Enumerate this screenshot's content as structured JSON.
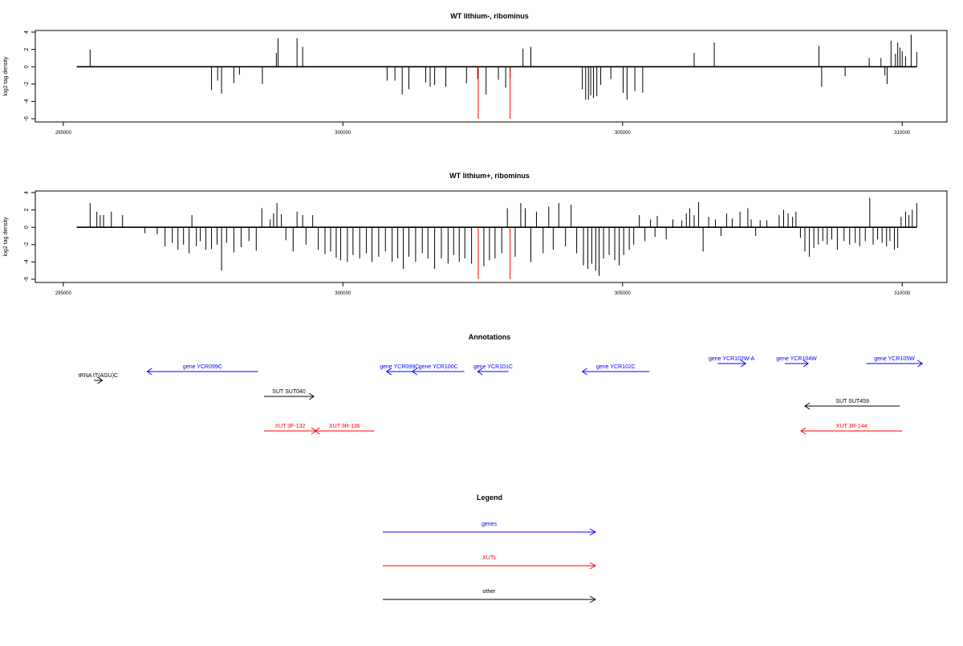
{
  "chart_data": [
    {
      "type": "bar",
      "title": "WT lithium-, ribominus",
      "xlabel": "",
      "ylabel": "log2 tag density",
      "xlim": [
        294500,
        310800
      ],
      "ylim": [
        -6,
        4
      ],
      "xticks": [
        295000,
        300000,
        305000,
        310000
      ],
      "yticks": [
        -6,
        -4,
        -2,
        0,
        2,
        4
      ],
      "grid": false,
      "series": [
        {
          "color": "#000000",
          "points": [
            [
              295480,
              2.0
            ],
            [
              297650,
              -2.7
            ],
            [
              297760,
              -1.6
            ],
            [
              297830,
              -3.1
            ],
            [
              298050,
              -1.9
            ],
            [
              298150,
              -0.9
            ],
            [
              298560,
              -2.0
            ],
            [
              298810,
              1.6
            ],
            [
              298840,
              3.3
            ],
            [
              299180,
              3.3
            ],
            [
              299280,
              2.3
            ],
            [
              300790,
              -1.6
            ],
            [
              300930,
              -1.6
            ],
            [
              301060,
              -3.2
            ],
            [
              301180,
              -2.6
            ],
            [
              301480,
              -1.8
            ],
            [
              301560,
              -2.3
            ],
            [
              301640,
              -2.1
            ],
            [
              301840,
              -2.3
            ],
            [
              302210,
              -1.9
            ],
            [
              302410,
              -1.4
            ],
            [
              302560,
              -3.2
            ],
            [
              302780,
              -1.5
            ],
            [
              302910,
              -2.4
            ],
            [
              302990,
              -1.4
            ],
            [
              303220,
              2.1
            ],
            [
              303360,
              2.3
            ],
            [
              304280,
              -2.6
            ],
            [
              304340,
              -3.8
            ],
            [
              304390,
              -3.8
            ],
            [
              304430,
              -3.3
            ],
            [
              304480,
              -3.6
            ],
            [
              304540,
              -3.4
            ],
            [
              304610,
              -2.1
            ],
            [
              304790,
              -1.4
            ],
            [
              305010,
              -3.0
            ],
            [
              305080,
              -3.8
            ],
            [
              305220,
              -2.8
            ],
            [
              305360,
              -3.0
            ],
            [
              306280,
              1.6
            ],
            [
              306640,
              2.8
            ],
            [
              308510,
              2.4
            ],
            [
              308560,
              -2.3
            ],
            [
              308980,
              -1.1
            ],
            [
              309410,
              1.0
            ],
            [
              309620,
              1.0
            ],
            [
              309690,
              -1.0
            ],
            [
              309730,
              -2.0
            ],
            [
              309800,
              3.0
            ],
            [
              309880,
              1.5
            ],
            [
              309920,
              2.8
            ],
            [
              309960,
              2.2
            ],
            [
              310000,
              1.8
            ],
            [
              310060,
              1.2
            ],
            [
              310160,
              3.7
            ],
            [
              310260,
              1.7
            ]
          ]
        },
        {
          "color": "#ff0000",
          "points": [
            [
              302420,
              -6.0
            ],
            [
              302990,
              -6.0
            ]
          ]
        }
      ]
    },
    {
      "type": "bar",
      "title": "WT lithium+, ribominus",
      "xlabel": "",
      "ylabel": "log2 tag density",
      "xlim": [
        294500,
        310800
      ],
      "ylim": [
        -6,
        4
      ],
      "xticks": [
        295000,
        300000,
        305000,
        310000
      ],
      "yticks": [
        -6,
        -4,
        -2,
        0,
        2,
        4
      ],
      "grid": false,
      "series": [
        {
          "color": "#000000",
          "points": [
            [
              295480,
              2.8
            ],
            [
              295600,
              1.8
            ],
            [
              295660,
              1.4
            ],
            [
              295720,
              1.4
            ],
            [
              295860,
              1.8
            ],
            [
              296060,
              1.4
            ],
            [
              296460,
              -0.7
            ],
            [
              296680,
              -0.8
            ],
            [
              296820,
              -2.2
            ],
            [
              296950,
              -1.8
            ],
            [
              297050,
              -2.6
            ],
            [
              297150,
              -2.0
            ],
            [
              297250,
              -3.0
            ],
            [
              297300,
              1.4
            ],
            [
              297380,
              -2.2
            ],
            [
              297450,
              -1.6
            ],
            [
              297550,
              -2.6
            ],
            [
              297650,
              -2.5
            ],
            [
              297750,
              -2.0
            ],
            [
              297830,
              -5.0
            ],
            [
              297920,
              -1.8
            ],
            [
              298050,
              -2.9
            ],
            [
              298180,
              -2.3
            ],
            [
              298320,
              -1.6
            ],
            [
              298450,
              -2.7
            ],
            [
              298550,
              2.2
            ],
            [
              298700,
              0.9
            ],
            [
              298760,
              1.6
            ],
            [
              298820,
              2.8
            ],
            [
              298900,
              1.5
            ],
            [
              298980,
              -1.5
            ],
            [
              299110,
              -2.8
            ],
            [
              299180,
              1.8
            ],
            [
              299280,
              1.4
            ],
            [
              299340,
              -2.0
            ],
            [
              299460,
              1.4
            ],
            [
              299560,
              -2.6
            ],
            [
              299680,
              -3.1
            ],
            [
              299780,
              -2.8
            ],
            [
              299880,
              -3.5
            ],
            [
              299960,
              -3.8
            ],
            [
              300080,
              -4.0
            ],
            [
              300180,
              -3.2
            ],
            [
              300300,
              -3.6
            ],
            [
              300420,
              -3.0
            ],
            [
              300520,
              -4.0
            ],
            [
              300640,
              -3.4
            ],
            [
              300760,
              -2.8
            ],
            [
              300880,
              -4.0
            ],
            [
              300980,
              -3.6
            ],
            [
              301080,
              -4.8
            ],
            [
              301180,
              -3.4
            ],
            [
              301300,
              -4.0
            ],
            [
              301420,
              -3.0
            ],
            [
              301520,
              -3.6
            ],
            [
              301640,
              -4.8
            ],
            [
              301760,
              -3.6
            ],
            [
              301880,
              -4.2
            ],
            [
              301980,
              -3.2
            ],
            [
              302080,
              -4.0
            ],
            [
              302180,
              -3.6
            ],
            [
              302300,
              -4.2
            ],
            [
              302520,
              -4.5
            ],
            [
              302620,
              -3.8
            ],
            [
              302720,
              -3.6
            ],
            [
              302840,
              -3.0
            ],
            [
              302940,
              2.2
            ],
            [
              303080,
              -3.4
            ],
            [
              303180,
              2.8
            ],
            [
              303260,
              2.2
            ],
            [
              303360,
              -4.0
            ],
            [
              303460,
              1.8
            ],
            [
              303580,
              -3.0
            ],
            [
              303680,
              2.4
            ],
            [
              303760,
              -2.6
            ],
            [
              303860,
              2.8
            ],
            [
              303980,
              -2.2
            ],
            [
              304080,
              2.6
            ],
            [
              304180,
              -3.0
            ],
            [
              304300,
              -4.4
            ],
            [
              304380,
              -4.8
            ],
            [
              304450,
              -4.2
            ],
            [
              304520,
              -5.0
            ],
            [
              304580,
              -5.6
            ],
            [
              304660,
              -3.6
            ],
            [
              304760,
              -3.2
            ],
            [
              304860,
              -3.8
            ],
            [
              304940,
              -4.4
            ],
            [
              305020,
              -3.2
            ],
            [
              305120,
              -2.6
            ],
            [
              305200,
              -2.0
            ],
            [
              305300,
              1.4
            ],
            [
              305400,
              -1.6
            ],
            [
              305500,
              0.9
            ],
            [
              305580,
              -1.1
            ],
            [
              305620,
              1.3
            ],
            [
              305780,
              -1.4
            ],
            [
              305900,
              0.9
            ],
            [
              306060,
              0.8
            ],
            [
              306140,
              1.6
            ],
            [
              306200,
              2.2
            ],
            [
              306280,
              1.4
            ],
            [
              306360,
              2.9
            ],
            [
              306440,
              -2.8
            ],
            [
              306540,
              1.2
            ],
            [
              306660,
              0.9
            ],
            [
              306760,
              -1.0
            ],
            [
              306860,
              1.6
            ],
            [
              306960,
              1.0
            ],
            [
              307100,
              1.8
            ],
            [
              307240,
              2.2
            ],
            [
              307300,
              0.9
            ],
            [
              307380,
              -1.0
            ],
            [
              307460,
              0.8
            ],
            [
              307580,
              0.8
            ],
            [
              307800,
              1.4
            ],
            [
              307880,
              2.0
            ],
            [
              307960,
              1.6
            ],
            [
              308040,
              1.2
            ],
            [
              308100,
              1.8
            ],
            [
              308180,
              -1.2
            ],
            [
              308260,
              -2.8
            ],
            [
              308340,
              -3.4
            ],
            [
              308420,
              -2.4
            ],
            [
              308500,
              -2.0
            ],
            [
              308580,
              -1.6
            ],
            [
              308660,
              -2.0
            ],
            [
              308740,
              -1.4
            ],
            [
              308840,
              -2.6
            ],
            [
              308960,
              -1.6
            ],
            [
              309060,
              -2.0
            ],
            [
              309160,
              -1.8
            ],
            [
              309240,
              -2.2
            ],
            [
              309340,
              -1.6
            ],
            [
              309420,
              3.4
            ],
            [
              309480,
              -2.0
            ],
            [
              309560,
              -1.4
            ],
            [
              309640,
              -1.8
            ],
            [
              309720,
              -2.2
            ],
            [
              309780,
              -1.6
            ],
            [
              309860,
              -2.6
            ],
            [
              309920,
              -2.4
            ],
            [
              309980,
              1.2
            ],
            [
              310060,
              1.8
            ],
            [
              310120,
              1.4
            ],
            [
              310180,
              2.0
            ],
            [
              310260,
              2.8
            ]
          ]
        },
        {
          "color": "#ff0000",
          "points": [
            [
              302420,
              -6.0
            ],
            [
              302990,
              -6.0
            ]
          ]
        }
      ]
    }
  ],
  "annotations": {
    "title": "Annotations",
    "features": [
      {
        "label": "tRNA tT(AGU)C",
        "start": 295550,
        "end": 295700,
        "strand": "+",
        "row": 0,
        "color": "#000000"
      },
      {
        "label": "gene YCR099C",
        "start": 296500,
        "end": 298480,
        "strand": "-",
        "row": 1,
        "color": "#0000ff"
      },
      {
        "label": "gene YCR099C",
        "start": 300780,
        "end": 301240,
        "strand": "-",
        "row": 1,
        "color": "#0000ff"
      },
      {
        "label": "gene YCR100C",
        "start": 301240,
        "end": 302170,
        "strand": "-",
        "row": 1,
        "color": "#0000ff"
      },
      {
        "label": "gene YCR101C",
        "start": 302410,
        "end": 302960,
        "strand": "-",
        "row": 1,
        "color": "#0000ff"
      },
      {
        "label": "gene YCR102C",
        "start": 304280,
        "end": 305480,
        "strand": "-",
        "row": 1,
        "color": "#0000ff"
      },
      {
        "label": "gene YCR102W-A",
        "start": 306700,
        "end": 307200,
        "strand": "+",
        "row": 2,
        "color": "#0000ff"
      },
      {
        "label": "gene YCR104W",
        "start": 307900,
        "end": 308320,
        "strand": "+",
        "row": 2,
        "color": "#0000ff"
      },
      {
        "label": "gene YCR105W",
        "start": 309360,
        "end": 310360,
        "strand": "+",
        "row": 2,
        "color": "#0000ff"
      },
      {
        "label": "SUT SUT040",
        "start": 298590,
        "end": 299480,
        "strand": "+",
        "row": 3,
        "color": "#000000"
      },
      {
        "label": "SUT SUT459",
        "start": 308260,
        "end": 309960,
        "strand": "-",
        "row": 4,
        "color": "#000000"
      },
      {
        "label": "XUT 3F-132",
        "start": 298590,
        "end": 299520,
        "strand": "+",
        "row": 5,
        "color": "#ff0000"
      },
      {
        "label": "XUT 3R-136",
        "start": 299500,
        "end": 300560,
        "strand": "-",
        "row": 5,
        "color": "#ff0000"
      },
      {
        "label": "XUT 3R-144",
        "start": 308190,
        "end": 310000,
        "strand": "-",
        "row": 5,
        "color": "#ff0000"
      }
    ]
  },
  "legend": {
    "title": "Legend",
    "items": [
      {
        "label": "genes",
        "color": "#0000ff"
      },
      {
        "label": "XUTs",
        "color": "#ff0000"
      },
      {
        "label": "other",
        "color": "#000000"
      }
    ]
  }
}
